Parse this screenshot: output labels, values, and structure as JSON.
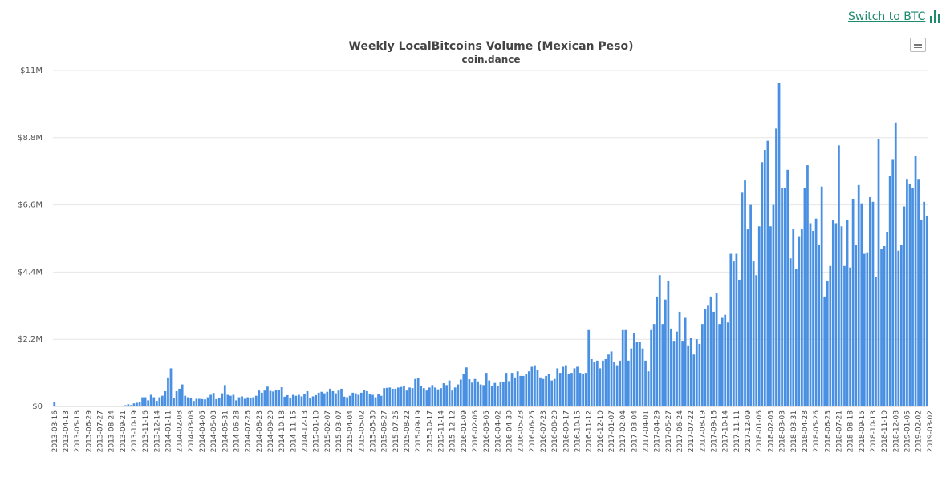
{
  "switch_link": {
    "label": "Switch to BTC",
    "icon": "bar-chart-icon",
    "color": "#1e8a6e"
  },
  "menu": {
    "icon": "hamburger-menu-icon"
  },
  "chart_data": {
    "type": "bar",
    "title": "Weekly LocalBitcoins Volume (Mexican Peso)",
    "subtitle": "coin.dance",
    "xlabel": "",
    "ylabel": "",
    "ylim": [
      0,
      11000000
    ],
    "yticks": [
      {
        "value": 0,
        "label": "$0"
      },
      {
        "value": 2200000,
        "label": "$2.2M"
      },
      {
        "value": 4400000,
        "label": "$4.4M"
      },
      {
        "value": 6600000,
        "label": "$6.6M"
      },
      {
        "value": 8800000,
        "label": "$8.8M"
      },
      {
        "value": 11000000,
        "label": "$11M"
      }
    ],
    "xtick_labels": [
      "2013-03-16",
      "2013-04-13",
      "2013-05-18",
      "2013-06-29",
      "2013-07-27",
      "2013-08-24",
      "2013-09-21",
      "2013-10-19",
      "2013-11-16",
      "2013-12-14",
      "2014-01-11",
      "2014-02-08",
      "2014-03-08",
      "2014-04-05",
      "2014-05-03",
      "2014-05-31",
      "2014-06-28",
      "2014-07-26",
      "2014-08-23",
      "2014-09-20",
      "2014-10-18",
      "2014-11-15",
      "2014-12-13",
      "2015-01-10",
      "2015-02-07",
      "2015-03-07",
      "2015-04-04",
      "2015-05-02",
      "2015-05-30",
      "2015-06-27",
      "2015-07-25",
      "2015-08-22",
      "2015-09-19",
      "2015-10-17",
      "2015-11-14",
      "2015-12-12",
      "2016-01-09",
      "2016-02-06",
      "2016-03-05",
      "2016-04-02",
      "2016-04-30",
      "2016-05-28",
      "2016-06-25",
      "2016-07-23",
      "2016-08-20",
      "2016-09-17",
      "2016-10-15",
      "2016-11-12",
      "2016-12-10",
      "2017-01-07",
      "2017-02-04",
      "2017-03-04",
      "2017-04-01",
      "2017-04-29",
      "2017-05-27",
      "2017-06-24",
      "2017-07-22",
      "2017-08-19",
      "2017-09-16",
      "2017-10-14",
      "2017-11-11",
      "2017-12-09",
      "2018-01-06",
      "2018-02-03",
      "2018-03-03",
      "2018-03-31",
      "2018-04-28",
      "2018-05-26",
      "2018-06-23",
      "2018-07-21",
      "2018-08-18",
      "2018-09-15",
      "2018-10-13",
      "2018-11-10",
      "2018-12-08",
      "2019-01-05",
      "2019-02-02",
      "2019-03-02"
    ],
    "series": [
      {
        "color": "#4a90e2",
        "start_week": "2013-03-16",
        "values": [
          150000,
          0,
          15000,
          0,
          0,
          0,
          15000,
          0,
          0,
          0,
          0,
          0,
          0,
          0,
          0,
          0,
          0,
          0,
          15000,
          0,
          0,
          25000,
          0,
          0,
          0,
          40000,
          70000,
          45000,
          100000,
          120000,
          140000,
          300000,
          300000,
          200000,
          380000,
          300000,
          180000,
          300000,
          350000,
          500000,
          950000,
          1250000,
          280000,
          500000,
          580000,
          720000,
          350000,
          300000,
          280000,
          180000,
          250000,
          250000,
          240000,
          230000,
          300000,
          380000,
          440000,
          240000,
          270000,
          430000,
          700000,
          380000,
          350000,
          380000,
          200000,
          300000,
          330000,
          250000,
          300000,
          280000,
          300000,
          350000,
          520000,
          450000,
          520000,
          650000,
          510000,
          490000,
          530000,
          530000,
          630000,
          320000,
          370000,
          290000,
          380000,
          350000,
          380000,
          330000,
          410000,
          500000,
          280000,
          330000,
          370000,
          450000,
          480000,
          430000,
          480000,
          580000,
          500000,
          430000,
          520000,
          580000,
          320000,
          300000,
          350000,
          450000,
          430000,
          380000,
          450000,
          550000,
          500000,
          400000,
          380000,
          300000,
          400000,
          350000,
          600000,
          610000,
          620000,
          580000,
          580000,
          620000,
          640000,
          670000,
          520000,
          620000,
          600000,
          900000,
          920000,
          680000,
          600000,
          520000,
          620000,
          700000,
          620000,
          560000,
          600000,
          760000,
          700000,
          850000,
          520000,
          620000,
          720000,
          880000,
          1050000,
          1280000,
          890000,
          780000,
          900000,
          820000,
          720000,
          700000,
          1100000,
          850000,
          680000,
          770000,
          660000,
          790000,
          800000,
          1100000,
          830000,
          1100000,
          950000,
          1150000,
          1000000,
          1000000,
          1050000,
          1150000,
          1300000,
          1350000,
          1200000,
          950000,
          900000,
          1000000,
          1050000,
          850000,
          900000,
          1250000,
          1100000,
          1300000,
          1350000,
          1050000,
          1100000,
          1250000,
          1300000,
          1100000,
          1050000,
          1100000,
          2500000,
          1550000,
          1450000,
          1500000,
          1250000,
          1500000,
          1550000,
          1700000,
          1800000,
          1450000,
          1350000,
          1500000,
          2500000,
          2500000,
          1500000,
          1900000,
          2400000,
          2100000,
          2100000,
          1900000,
          1500000,
          1150000,
          2500000,
          2700000,
          3600000,
          4300000,
          2700000,
          3500000,
          4100000,
          2550000,
          2150000,
          2450000,
          3100000,
          2150000,
          2900000,
          2000000,
          2250000,
          1700000,
          2200000,
          2050000,
          2700000,
          3200000,
          3300000,
          3600000,
          3100000,
          3700000,
          2700000,
          2900000,
          3000000,
          2750000,
          5000000,
          4750000,
          5000000,
          4150000,
          7000000,
          7400000,
          5800000,
          6600000,
          4750000,
          4300000,
          5900000,
          8000000,
          8400000,
          8700000,
          5900000,
          6600000,
          9100000,
          10600000,
          7150000,
          7150000,
          7750000,
          4850000,
          5800000,
          4500000,
          5550000,
          5800000,
          7150000,
          7900000,
          6000000,
          5750000,
          6150000,
          5300000,
          7200000,
          3600000,
          4100000,
          4600000,
          6100000,
          6000000,
          8550000,
          5900000,
          4600000,
          6100000,
          4550000,
          6800000,
          5300000,
          7250000,
          6650000,
          5000000,
          5050000,
          6850000,
          6700000,
          4250000,
          8750000,
          5150000,
          5250000,
          5700000,
          7550000,
          8100000,
          9300000,
          5100000,
          5300000,
          6550000,
          7450000,
          7300000,
          7150000,
          8200000,
          7450000,
          6100000,
          6700000,
          6250000
        ]
      }
    ],
    "highlight_week_index": 319,
    "grid": "horizontal",
    "legend": "none"
  }
}
